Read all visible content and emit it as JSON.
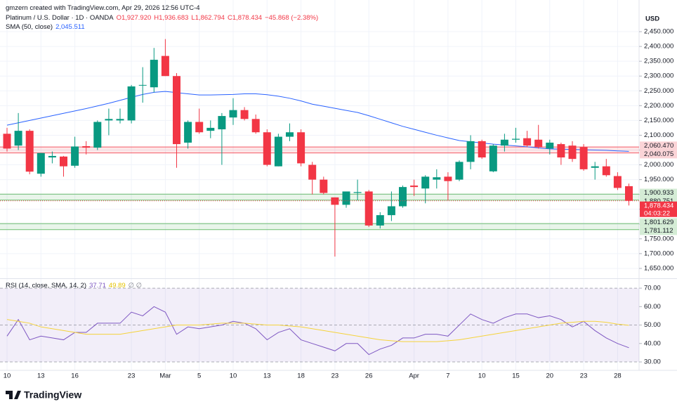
{
  "header": {
    "author_line": "gmzern created with TradingView.com, Apr 29, 2026 12:56 UTC-4",
    "logo": "TradingView"
  },
  "chart_data": [
    {
      "type": "candlestick",
      "symbol": "Platinum / U.S. Dollar · 1D · OANDA",
      "ohlc_labels": [
        "O1,927.920",
        "H1,936.683",
        "L1,862.794",
        "C1,878.434",
        "−45.868 (−2.38%)"
      ],
      "currency": "USD",
      "categories": [
        "10",
        null,
        null,
        "13",
        null,
        null,
        "16",
        null,
        null,
        null,
        null,
        "23",
        null,
        null,
        "Mar",
        null,
        null,
        "5",
        null,
        null,
        "10",
        null,
        null,
        "13",
        null,
        null,
        "18",
        null,
        null,
        "23",
        null,
        null,
        "26",
        null,
        null,
        null,
        "Apr",
        null,
        null,
        "7",
        null,
        null,
        "10",
        null,
        null,
        "15",
        null,
        null,
        "20",
        null,
        null,
        "23",
        null,
        null,
        "28",
        null
      ],
      "open": [
        2105,
        2065,
        2115,
        1970,
        2025,
        2028,
        1997,
        2063,
        2058,
        2150,
        2150,
        2150,
        2268,
        2262,
        2368,
        2300,
        2075,
        2145,
        2115,
        2120,
        2160,
        2185,
        2155,
        2110,
        1995,
        2095,
        2110,
        2000,
        1950,
        1890,
        1865,
        1905,
        1910,
        1795,
        1830,
        1860,
        1930,
        1920,
        1950,
        1960,
        1950,
        2010,
        2080,
        1978,
        2065,
        2085,
        2090,
        2085,
        2055,
        2070,
        2065,
        2060,
        1990,
        1995,
        1962,
        1927.92
      ],
      "high": [
        2125,
        2175,
        2120,
        2040,
        2045,
        2030,
        2095,
        2080,
        2150,
        2190,
        2190,
        2270,
        2330,
        2395,
        2425,
        2310,
        2150,
        2190,
        2150,
        2175,
        2225,
        2195,
        2170,
        2120,
        2105,
        2140,
        2120,
        2010,
        1960,
        1890,
        1910,
        1950,
        1915,
        1840,
        1910,
        1930,
        1950,
        1965,
        1985,
        1975,
        2015,
        2100,
        2085,
        2070,
        2105,
        2125,
        2115,
        2135,
        2085,
        2075,
        2080,
        2070,
        2010,
        2020,
        1975,
        1936.683
      ],
      "low": [
        2045,
        2050,
        1968,
        1960,
        2005,
        1960,
        1990,
        2035,
        2050,
        2100,
        2140,
        2140,
        2210,
        2245,
        2300,
        1990,
        2055,
        2105,
        2090,
        2000,
        2135,
        2150,
        2105,
        1995,
        1995,
        2080,
        1995,
        1900,
        1900,
        1690,
        1855,
        1880,
        1790,
        1785,
        1810,
        1855,
        1895,
        1870,
        1920,
        1880,
        1945,
        1985,
        2020,
        1975,
        2045,
        2075,
        2060,
        2055,
        2035,
        2000,
        2010,
        1980,
        1950,
        1960,
        1915,
        1862.794
      ],
      "close": [
        2055,
        2115,
        1977,
        2040,
        2030,
        1995,
        2062,
        2058,
        2145,
        2155,
        2155,
        2265,
        2270,
        2355,
        2300,
        2070,
        2145,
        2110,
        2125,
        2165,
        2185,
        2155,
        2110,
        2000,
        2095,
        2110,
        2005,
        1950,
        1905,
        1865,
        1910,
        1908,
        1795,
        1830,
        1860,
        1925,
        1925,
        1960,
        1958,
        1945,
        2010,
        2080,
        2025,
        2065,
        2085,
        2088,
        2065,
        2060,
        2075,
        2025,
        2020,
        1985,
        1995,
        1965,
        1922,
        1878.434
      ],
      "up_color": "#089981",
      "down_color": "#f23645",
      "ylim": [
        1619,
        2538
      ],
      "yticks": [
        {
          "value": 1650,
          "label": "1,650.000"
        },
        {
          "value": 1700,
          "label": "1,700.000"
        },
        {
          "value": 1750,
          "label": "1,750.000"
        },
        {
          "value": 1800,
          "label": "1,800.000"
        },
        {
          "value": 1850,
          "label": "1,850.000"
        },
        {
          "value": 1900,
          "label": "1,900.000"
        },
        {
          "value": 1950,
          "label": "1,950.000"
        },
        {
          "value": 2000,
          "label": "2,000.000"
        },
        {
          "value": 2050,
          "label": "2,050.000"
        },
        {
          "value": 2100,
          "label": "2,100.000"
        },
        {
          "value": 2150,
          "label": "2,150.000"
        },
        {
          "value": 2200,
          "label": "2,200.000"
        },
        {
          "value": 2250,
          "label": "2,250.000"
        },
        {
          "value": 2300,
          "label": "2,300.000"
        },
        {
          "value": 2350,
          "label": "2,350.000"
        },
        {
          "value": 2400,
          "label": "2,400.000"
        },
        {
          "value": 2450,
          "label": "2,450.000"
        }
      ],
      "grid": true,
      "overlays": [
        {
          "name": "SMA (50, close)",
          "value_label": "2,045.511",
          "color": "#2962ff",
          "values": [
            2134,
            2142,
            2150,
            2158,
            2166,
            2174,
            2182,
            2190,
            2199,
            2208,
            2218,
            2228,
            2238,
            2245,
            2248,
            2244,
            2240,
            2236,
            2236,
            2237,
            2238,
            2240,
            2240,
            2237,
            2232,
            2225,
            2216,
            2205,
            2198,
            2191,
            2184,
            2177,
            2166,
            2154,
            2142,
            2130,
            2120,
            2110,
            2100,
            2091,
            2082,
            2078,
            2074,
            2070,
            2067,
            2064,
            2061,
            2057,
            2054,
            2053,
            2052,
            2051,
            2050,
            2049,
            2047,
            2045.511
          ]
        }
      ],
      "zones": [
        {
          "top": {
            "value": 2060.47,
            "label": "2,060.470"
          },
          "bottom": {
            "value": 2040.075,
            "label": "2,040.075"
          },
          "color": "#f23645"
        },
        {
          "top": {
            "value": 1900.933,
            "label": "1,900.933"
          },
          "bottom": {
            "value": 1880.751,
            "label": "1,880.751"
          },
          "color": "#4caf50"
        },
        {
          "top": {
            "value": 1801.629,
            "label": "1,801.629"
          },
          "bottom": {
            "value": 1781.112,
            "label": "1,781.112"
          },
          "color": "#4caf50"
        }
      ],
      "last_price": {
        "value": 1878.434,
        "label": "1,878.434"
      },
      "countdown": "04:03:22"
    },
    {
      "type": "line",
      "title": "RSI (14, close, SMA, 14, 2)",
      "extra_label": "∅ ∅",
      "series": [
        {
          "color": "#7e57c2",
          "value_label": "37.71",
          "values": [
            44,
            53,
            42,
            44,
            43,
            42,
            46,
            46,
            51,
            51,
            51,
            57,
            55,
            60,
            57,
            45,
            49,
            48,
            49,
            50,
            52,
            51,
            48,
            42,
            46,
            48,
            42,
            40,
            38,
            36,
            40,
            40,
            34,
            37,
            39,
            43,
            43,
            45,
            45,
            44,
            50,
            56,
            53,
            51,
            54,
            56,
            56,
            54,
            55,
            53,
            49,
            52,
            47,
            43,
            40,
            37.71
          ]
        },
        {
          "color": "#f5d33b",
          "value_label": "49.89",
          "values": [
            53,
            52,
            51,
            49,
            48,
            47,
            46,
            45,
            45,
            45,
            45,
            46,
            47,
            48,
            49,
            50,
            50,
            50,
            50.5,
            51,
            51,
            51,
            50.5,
            50,
            50,
            49.5,
            49,
            48,
            47,
            46,
            45,
            44,
            43,
            42,
            41.5,
            41,
            41,
            41,
            41,
            41.5,
            42,
            43,
            44,
            45,
            46,
            47,
            48,
            49,
            50,
            51,
            51.5,
            52,
            52,
            51.5,
            50.5,
            49.89
          ]
        }
      ],
      "ylim": [
        26.2,
        74.6
      ],
      "yticks": [
        {
          "value": 30,
          "label": "30.00"
        },
        {
          "value": 40,
          "label": "40.00"
        },
        {
          "value": 50,
          "label": "50.00"
        },
        {
          "value": 60,
          "label": "60.00"
        },
        {
          "value": 70,
          "label": "70.00"
        }
      ],
      "band": {
        "from": 30,
        "to": 70,
        "color": "#7e57c2"
      },
      "dashed_levels": [
        30,
        50,
        70
      ]
    }
  ]
}
